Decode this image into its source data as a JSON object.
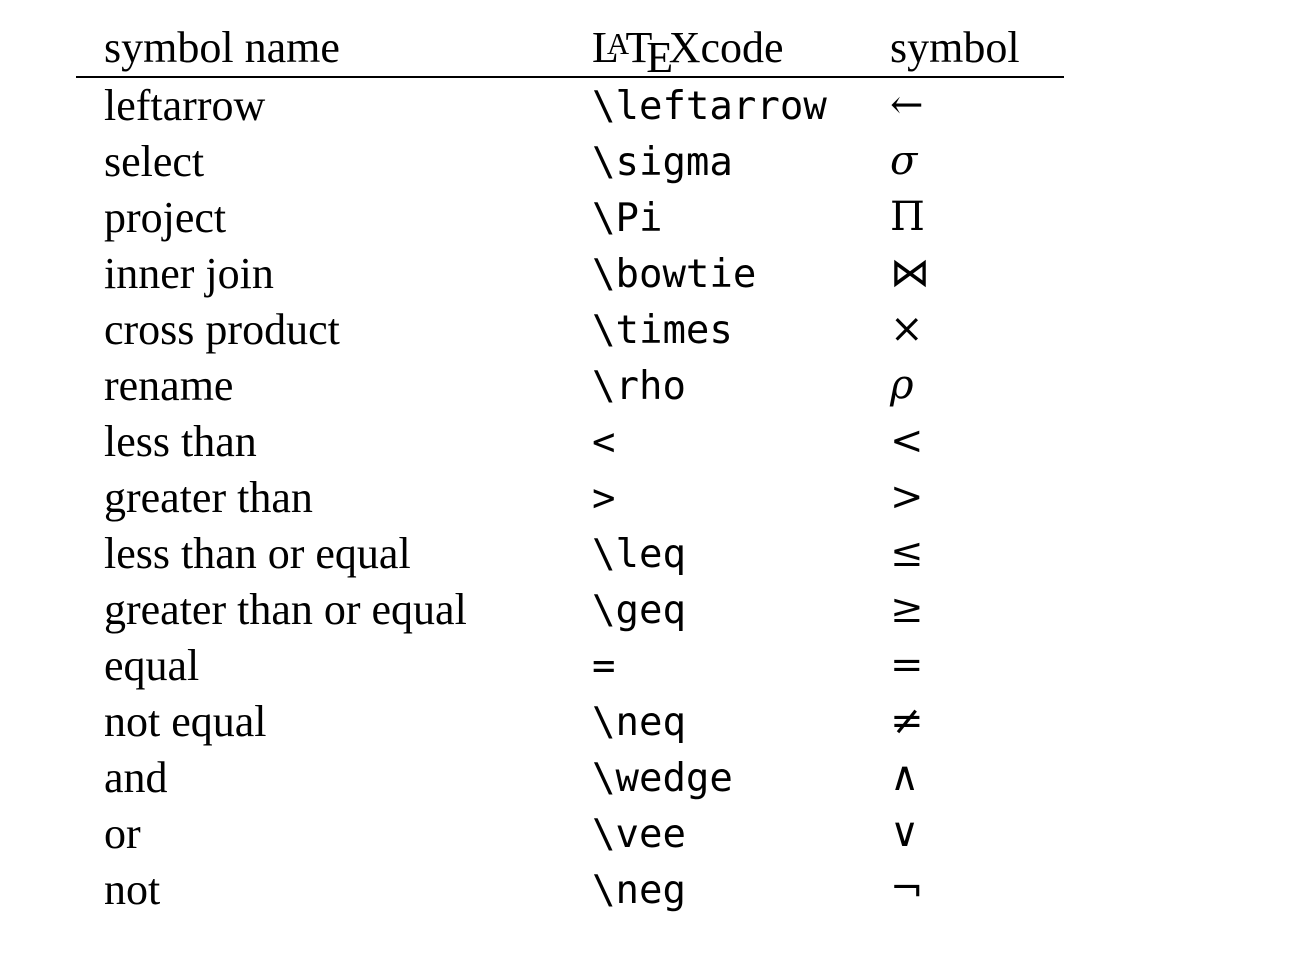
{
  "table": {
    "headers": {
      "name": "symbol name",
      "code_logo": "LaTeX",
      "code_suffix": "code",
      "symbol": "symbol"
    },
    "rows": [
      {
        "name": "leftarrow",
        "code": "\\leftarrow",
        "symbol": "←"
      },
      {
        "name": "select",
        "code": "\\sigma",
        "symbol": "σ"
      },
      {
        "name": "project",
        "code": "\\Pi",
        "symbol": "Π"
      },
      {
        "name": "inner join",
        "code": "\\bowtie",
        "symbol": "⋈"
      },
      {
        "name": "cross product",
        "code": "\\times",
        "symbol": "×"
      },
      {
        "name": "rename",
        "code": "\\rho",
        "symbol": "ρ"
      },
      {
        "name": "less than",
        "code": "<",
        "symbol": "<"
      },
      {
        "name": "greater than",
        "code": ">",
        "symbol": ">"
      },
      {
        "name": "less than or equal",
        "code": "\\leq",
        "symbol": "≤"
      },
      {
        "name": "greater than or equal",
        "code": "\\geq",
        "symbol": "≥"
      },
      {
        "name": "equal",
        "code": "=",
        "symbol": "="
      },
      {
        "name": "not equal",
        "code": "\\neq",
        "symbol": "≠"
      },
      {
        "name": "and",
        "code": "\\wedge",
        "symbol": "∧"
      },
      {
        "name": "or",
        "code": "\\vee",
        "symbol": "∨"
      },
      {
        "name": "not",
        "code": "\\neg",
        "symbol": "¬"
      }
    ]
  }
}
